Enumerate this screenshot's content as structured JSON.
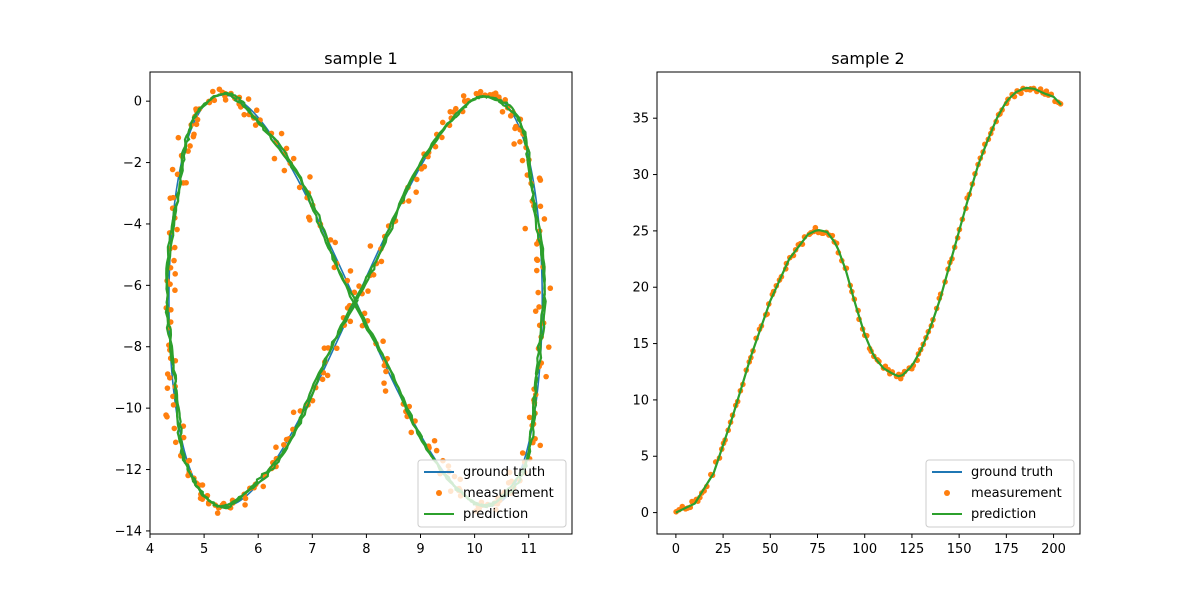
{
  "colors": {
    "ground_truth": "#1f77b4",
    "measurement": "#ff7f0e",
    "prediction": "#2ca02c",
    "axes": "#000000",
    "background": "#ffffff"
  },
  "legend_labels": [
    "ground truth",
    "measurement",
    "prediction"
  ],
  "chart_data": [
    {
      "type": "line",
      "title": "sample 1",
      "xlabel": "",
      "ylabel": "",
      "xlim": [
        4.0,
        11.8
      ],
      "ylim": [
        -14.1,
        0.95
      ],
      "xticks": [
        4,
        5,
        6,
        7,
        8,
        9,
        10,
        11
      ],
      "yticks": [
        0,
        -2,
        -4,
        -6,
        -8,
        -10,
        -12,
        -14
      ],
      "grid": false,
      "legend_position": "lower right",
      "curve": {
        "kind": "figure-eight",
        "parametric": "x = 7.8 + 3.45*sin(t), y = -6.5 + 6.7*sin(2t)",
        "t_range": [
          0,
          6.2832
        ],
        "loops": 2,
        "x_range": [
          4.35,
          11.3
        ],
        "y_range": [
          -13.2,
          0.2
        ],
        "crossing_point": [
          7.8,
          -6.5
        ]
      },
      "series": [
        {
          "name": "ground truth",
          "style": "line",
          "marker_count": 0,
          "noise_sd": 0
        },
        {
          "name": "measurement",
          "style": "points",
          "marker_count": 320,
          "noise_sd": 0.09
        },
        {
          "name": "prediction",
          "style": "line",
          "marker_count": 0,
          "noise_sd": 0.04
        }
      ]
    },
    {
      "type": "line",
      "title": "sample 2",
      "xlabel": "",
      "ylabel": "",
      "xlim": [
        -10,
        214
      ],
      "ylim": [
        -1.9,
        39.1
      ],
      "xticks": [
        0,
        25,
        50,
        75,
        100,
        125,
        150,
        175,
        200
      ],
      "yticks": [
        0,
        5,
        10,
        15,
        20,
        25,
        30,
        35
      ],
      "grid": false,
      "legend_position": "lower right",
      "x": [
        0,
        10,
        20,
        30,
        40,
        50,
        60,
        70,
        75,
        80,
        85,
        90,
        95,
        100,
        105,
        110,
        115,
        118,
        120,
        125,
        130,
        135,
        140,
        145,
        150,
        155,
        160,
        165,
        170,
        175,
        180,
        185,
        190,
        195,
        200,
        204
      ],
      "series": [
        {
          "name": "ground truth",
          "style": "line",
          "values": [
            0,
            0.8,
            3.5,
            8.5,
            14.0,
            18.8,
            22.5,
            24.7,
            25.1,
            24.9,
            23.8,
            21.5,
            18.5,
            15.8,
            13.8,
            12.8,
            12.3,
            12.1,
            12.2,
            13.0,
            14.5,
            16.5,
            19.0,
            22.0,
            25.0,
            28.0,
            30.8,
            33.0,
            35.0,
            36.5,
            37.3,
            37.7,
            37.6,
            37.2,
            36.9,
            36.2
          ]
        },
        {
          "name": "measurement",
          "style": "points",
          "marker_count": 150,
          "noise_sd": 0.18
        },
        {
          "name": "prediction",
          "style": "line",
          "values": [
            0,
            0.8,
            3.5,
            8.5,
            14.0,
            18.8,
            22.5,
            24.7,
            25.1,
            24.9,
            23.8,
            21.5,
            18.5,
            15.8,
            13.8,
            12.8,
            12.3,
            12.1,
            12.2,
            13.0,
            14.5,
            16.5,
            19.0,
            22.0,
            25.0,
            28.0,
            30.8,
            33.0,
            35.0,
            36.5,
            37.3,
            37.7,
            37.6,
            37.2,
            36.9,
            36.2
          ]
        }
      ]
    }
  ]
}
